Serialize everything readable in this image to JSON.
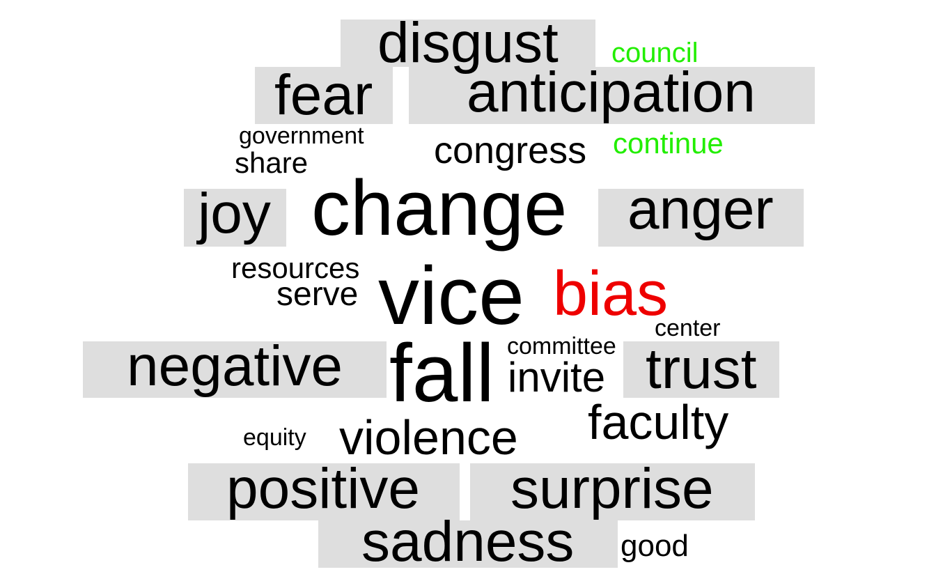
{
  "words": [
    {
      "key": "disgust",
      "text": "disgust",
      "color": "#000000",
      "highlight": true
    },
    {
      "key": "council",
      "text": "council",
      "color": "#22ee00",
      "highlight": false
    },
    {
      "key": "fear",
      "text": "fear",
      "color": "#000000",
      "highlight": true
    },
    {
      "key": "anticipation",
      "text": "anticipation",
      "color": "#000000",
      "highlight": true
    },
    {
      "key": "government",
      "text": "government",
      "color": "#000000",
      "highlight": false
    },
    {
      "key": "share",
      "text": "share",
      "color": "#000000",
      "highlight": false
    },
    {
      "key": "congress",
      "text": "congress",
      "color": "#000000",
      "highlight": false
    },
    {
      "key": "continue",
      "text": "continue",
      "color": "#22ee00",
      "highlight": false
    },
    {
      "key": "joy",
      "text": "joy",
      "color": "#000000",
      "highlight": true
    },
    {
      "key": "change",
      "text": "change",
      "color": "#000000",
      "highlight": false
    },
    {
      "key": "anger",
      "text": "anger",
      "color": "#000000",
      "highlight": true
    },
    {
      "key": "resources",
      "text": "resources",
      "color": "#000000",
      "highlight": false
    },
    {
      "key": "serve",
      "text": "serve",
      "color": "#000000",
      "highlight": false
    },
    {
      "key": "vice",
      "text": "vice",
      "color": "#000000",
      "highlight": false
    },
    {
      "key": "bias",
      "text": "bias",
      "color": "#ee0000",
      "highlight": false
    },
    {
      "key": "center",
      "text": "center",
      "color": "#000000",
      "highlight": false
    },
    {
      "key": "negative",
      "text": "negative",
      "color": "#000000",
      "highlight": true
    },
    {
      "key": "fall",
      "text": "fall",
      "color": "#000000",
      "highlight": false
    },
    {
      "key": "committee",
      "text": "committee",
      "color": "#000000",
      "highlight": false
    },
    {
      "key": "invite",
      "text": "invite",
      "color": "#000000",
      "highlight": false
    },
    {
      "key": "trust",
      "text": "trust",
      "color": "#000000",
      "highlight": true
    },
    {
      "key": "faculty",
      "text": "faculty",
      "color": "#000000",
      "highlight": false
    },
    {
      "key": "equity",
      "text": "equity",
      "color": "#000000",
      "highlight": false
    },
    {
      "key": "violence",
      "text": "violence",
      "color": "#000000",
      "highlight": false
    },
    {
      "key": "positive",
      "text": "positive",
      "color": "#000000",
      "highlight": true
    },
    {
      "key": "surprise",
      "text": "surprise",
      "color": "#000000",
      "highlight": true
    },
    {
      "key": "sadness",
      "text": "sadness",
      "color": "#000000",
      "highlight": true
    },
    {
      "key": "good",
      "text": "good",
      "color": "#000000",
      "highlight": false
    }
  ]
}
